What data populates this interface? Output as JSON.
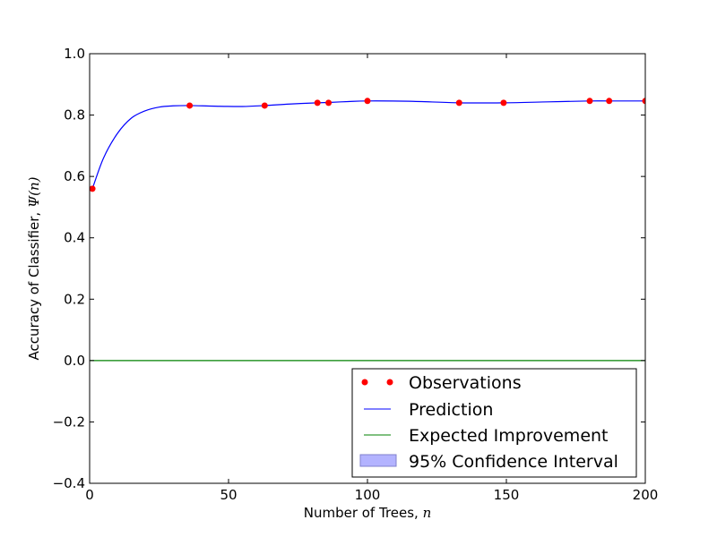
{
  "chart_data": {
    "type": "line",
    "title": "",
    "xlabel": "Number of Trees, n",
    "xlabel_text": "Number of Trees, ",
    "xlabel_var": "n",
    "ylabel": "Accuracy of Classifier, Ψ(n)",
    "ylabel_text": "Accuracy of Classifier, ",
    "ylabel_var": "Ψ(n)",
    "xlim": [
      0,
      200
    ],
    "ylim": [
      -0.4,
      1.0
    ],
    "xticks": [
      0,
      50,
      100,
      150,
      200
    ],
    "yticks": [
      -0.4,
      -0.2,
      0.0,
      0.2,
      0.4,
      0.6,
      0.8,
      1.0
    ],
    "xtick_labels": [
      "0",
      "50",
      "100",
      "150",
      "200"
    ],
    "ytick_labels": [
      "−0.4",
      "−0.2",
      "0.0",
      "0.2",
      "0.4",
      "0.6",
      "0.8",
      "1.0"
    ],
    "grid": false,
    "legend_position": "bottom-right",
    "series": [
      {
        "name": "Observations",
        "kind": "scatter",
        "color": "#ff0000",
        "x": [
          1,
          36,
          63,
          82,
          86,
          100,
          133,
          149,
          180,
          187,
          200
        ],
        "y": [
          0.56,
          0.831,
          0.831,
          0.84,
          0.84,
          0.846,
          0.84,
          0.84,
          0.846,
          0.846,
          0.846
        ]
      },
      {
        "name": "Prediction",
        "kind": "line",
        "color": "#0000ff",
        "x": [
          1,
          5,
          10,
          15,
          20,
          25,
          30,
          36,
          45,
          55,
          63,
          72,
          82,
          86,
          93,
          100,
          115,
          133,
          149,
          165,
          180,
          187,
          200
        ],
        "y": [
          0.56,
          0.66,
          0.74,
          0.79,
          0.814,
          0.826,
          0.83,
          0.831,
          0.829,
          0.828,
          0.831,
          0.836,
          0.84,
          0.841,
          0.844,
          0.846,
          0.845,
          0.84,
          0.84,
          0.843,
          0.846,
          0.846,
          0.846
        ]
      },
      {
        "name": "Expected Improvement",
        "kind": "line",
        "color": "#008000",
        "x": [
          0,
          200
        ],
        "y": [
          0.0,
          0.0
        ]
      },
      {
        "name": "95% Confidence Interval",
        "kind": "area",
        "color": "#b3b3ff",
        "x": [],
        "y": []
      }
    ]
  }
}
